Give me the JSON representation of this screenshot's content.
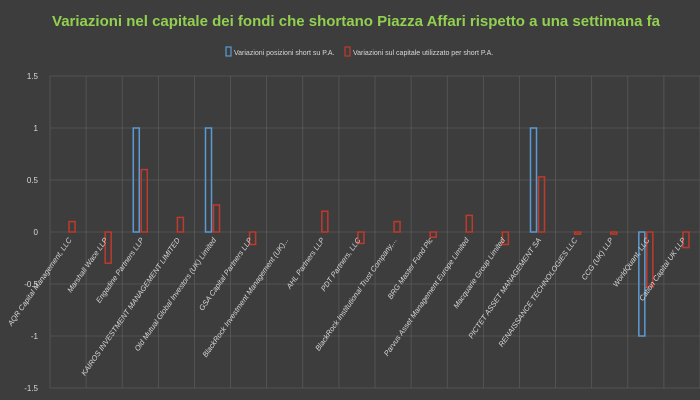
{
  "chart_data": {
    "type": "bar",
    "title": "Variazioni nel capitale dei fondi che shortano Piazza Affari rispetto a una settimana fa",
    "categories": [
      "AQR Capital Management, LLC",
      "Marshall Wace LLP",
      "Engadine Partners LLP",
      "KAIROS INVESTMENT MANAGEMENT LIMITED",
      "Old Mutual Global Investors (UK) Limited",
      "GSA Capital Partners LLP",
      "BlackRock Investment Management (UK)...",
      "AHL Partners LLP",
      "PDT Partners, LLC",
      "BlackRock Institutional Trust Company,...",
      "BRG Master Fund Plc",
      "Parvus Asset Management Europe Limited",
      "Macquarie Group Limited",
      "PICTET ASSET MANAGEMENT SA",
      "RENAISSANCE TECHNOLOGIES LLC",
      "CCG (UK) LLP",
      "WorldQuant, LLC",
      "Cation Capital UK LLP"
    ],
    "series": [
      {
        "name": "Variazioni posizioni short su P.A.",
        "color": "#5b9bd5",
        "values": [
          0,
          0,
          1,
          0,
          1,
          0,
          0,
          0,
          0,
          0,
          0,
          0,
          0,
          1,
          0,
          0,
          -1,
          0
        ]
      },
      {
        "name": "Variazioni sul capitale utilizzato per short P.A.",
        "color": "#c0392b",
        "values": [
          0.1,
          -0.3,
          0.6,
          0.14,
          0.26,
          -0.12,
          0,
          0.2,
          -0.11,
          0.1,
          -0.05,
          0.16,
          -0.12,
          0.53,
          -0.02,
          -0.02,
          -0.53,
          -0.15
        ]
      }
    ],
    "ylim": [
      -1.5,
      1.5
    ],
    "yticks": [
      "1.5",
      "1",
      "0.5",
      "0",
      "-0.5",
      "-1",
      "-1.5"
    ],
    "ytick_values": [
      1.5,
      1,
      0.5,
      0,
      -0.5,
      -1,
      -1.5
    ],
    "grid": true,
    "legend_position": "top",
    "title_color": "#92d050"
  }
}
